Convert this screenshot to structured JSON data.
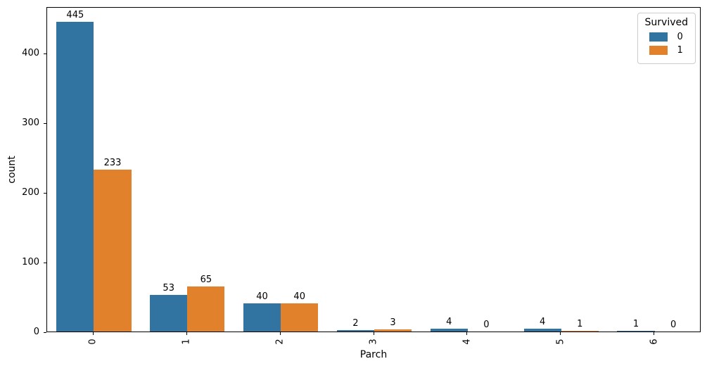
{
  "chart_data": {
    "type": "bar",
    "title": "",
    "xlabel": "Parch",
    "ylabel": "count",
    "categories": [
      "0",
      "1",
      "2",
      "3",
      "4",
      "5",
      "6"
    ],
    "series": [
      {
        "name": "0",
        "color": "#3274a1",
        "values": [
          445,
          53,
          40,
          2,
          4,
          4,
          1
        ]
      },
      {
        "name": "1",
        "color": "#e1812c",
        "values": [
          233,
          65,
          40,
          3,
          0,
          1,
          0
        ]
      }
    ],
    "ylim": [
      0,
      467.25
    ],
    "yticks": [
      0,
      100,
      200,
      300,
      400
    ],
    "xtick_rotation": 90,
    "grid": false,
    "bar_value_labels": true,
    "legend": {
      "title": "Survived",
      "entries": [
        "0",
        "1"
      ],
      "position": "upper right"
    },
    "colors": {
      "axis": "#000000",
      "legend_border": "#cccccc",
      "background": "#ffffff"
    }
  }
}
